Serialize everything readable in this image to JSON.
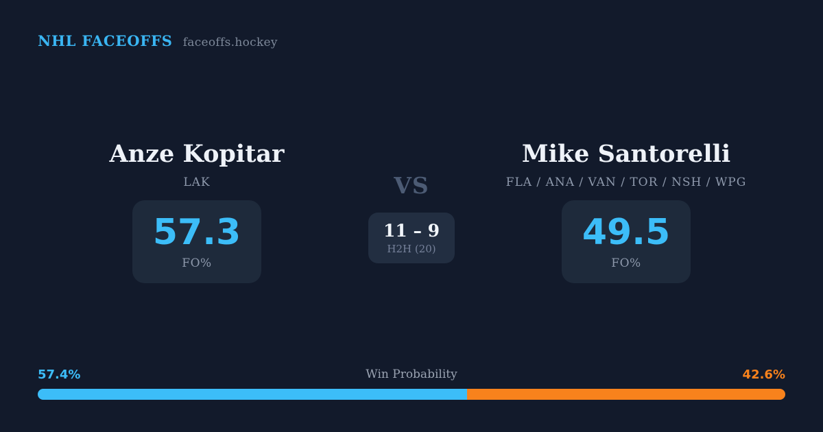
{
  "brand": {
    "title": "NHL FACEOFFS",
    "domain": "faceoffs.hockey"
  },
  "players": {
    "left": {
      "name": "Anze Kopitar",
      "teams": "LAK",
      "fo_value": "57.3",
      "stat_label": "FO%"
    },
    "right": {
      "name": "Mike Santorelli",
      "teams": "FLA / ANA / VAN / TOR / NSH / WPG",
      "fo_value": "49.5",
      "stat_label": "FO%"
    }
  },
  "matchup": {
    "vs_label": "VS",
    "h2h_score": "11 – 9",
    "h2h_label": "H2H (20)"
  },
  "win_probability": {
    "title": "Win Probability",
    "left_label": "57.4%",
    "right_label": "42.6%",
    "left_value": 57.4,
    "right_value": 42.6
  },
  "colors": {
    "background": "#121a2b",
    "card": "#1e2a3b",
    "h2h_card": "#222e41",
    "accent_blue": "#3cbdf8",
    "accent_orange": "#f8821c",
    "muted_text": "#8e99ac",
    "name_text": "#eef2f8"
  }
}
